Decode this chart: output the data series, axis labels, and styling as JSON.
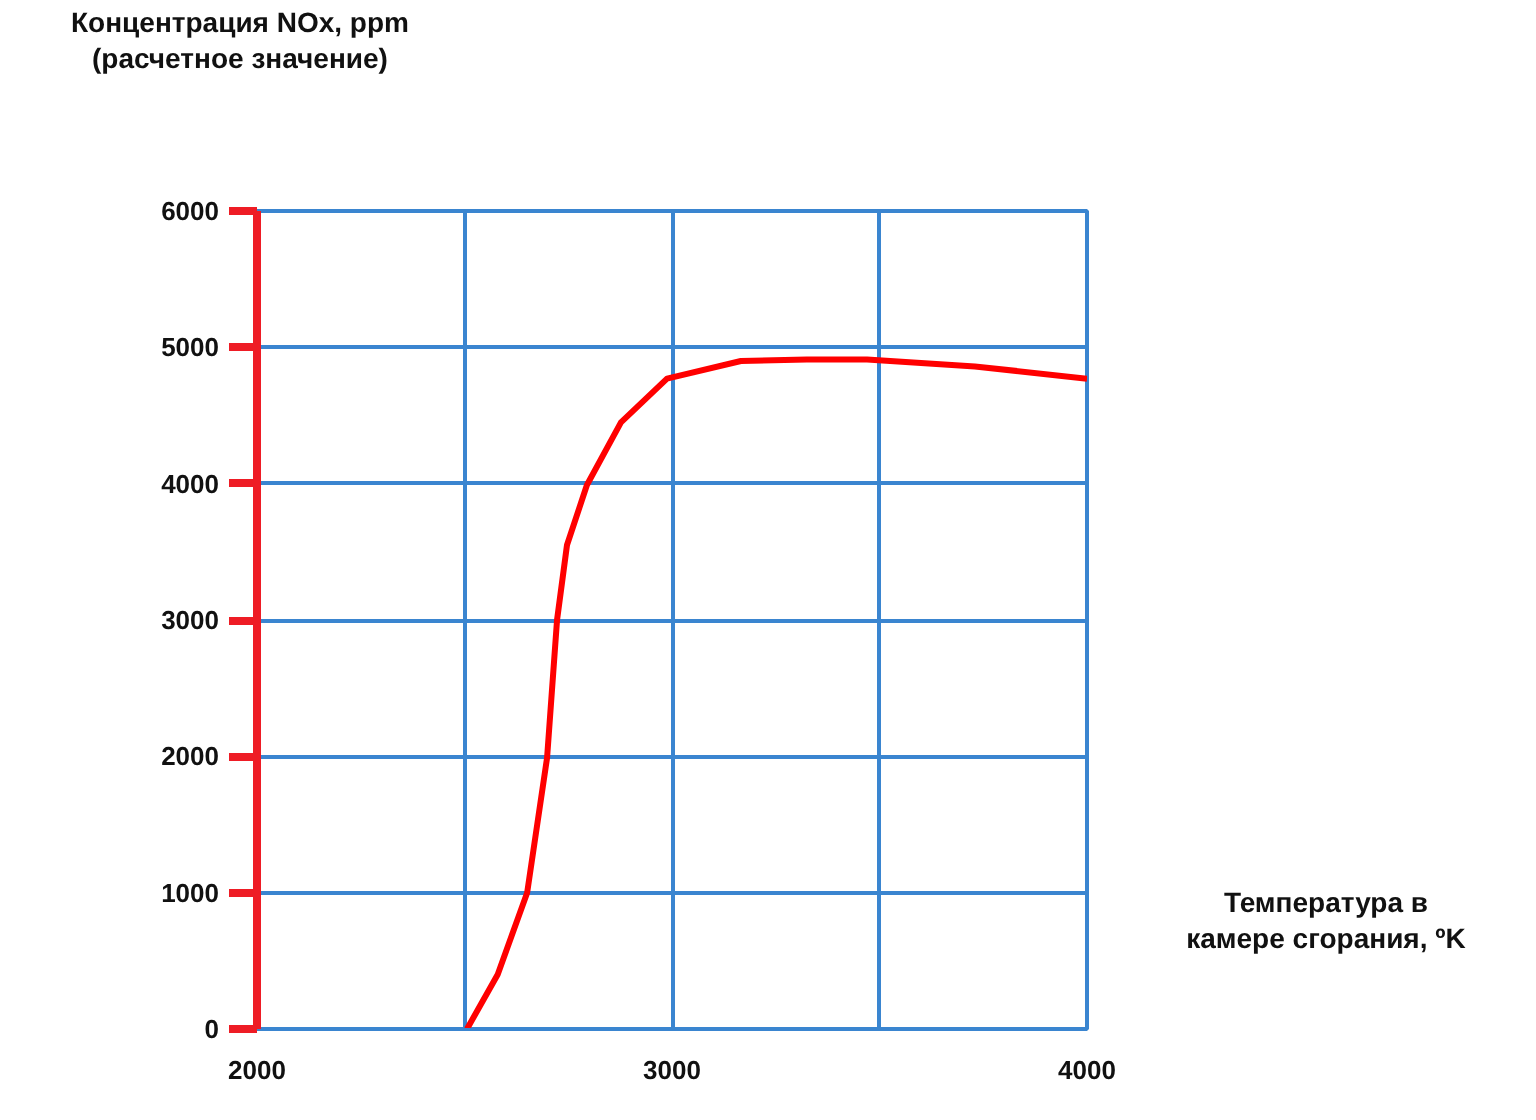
{
  "chart_data": {
    "type": "line",
    "ylabel": "Концентрация NOx, ppm\n(расчетное значение)",
    "xlabel": "Температура в\nкамере сгорания, ºK",
    "x": [
      2506,
      2580,
      2651,
      2699,
      2723,
      2747,
      2795,
      2877,
      2988,
      3166,
      3325,
      3470,
      3730,
      4000
    ],
    "series": [
      {
        "color": "#ff0000",
        "values": [
          0,
          400,
          1000,
          1990,
          3000,
          3550,
          3990,
          4450,
          4770,
          4900,
          4910,
          4910,
          4860,
          4770
        ]
      }
    ],
    "xlim": [
      2000,
      4000
    ],
    "ylim": [
      0,
      6000
    ],
    "xticks": [
      2000,
      {
        "value": 2500,
        "label": null
      },
      3000,
      {
        "value": 3500,
        "label": null
      },
      4000
    ],
    "yticks": [
      0,
      1000,
      2000,
      3000,
      4000,
      5000,
      6000
    ],
    "grid": true
  }
}
